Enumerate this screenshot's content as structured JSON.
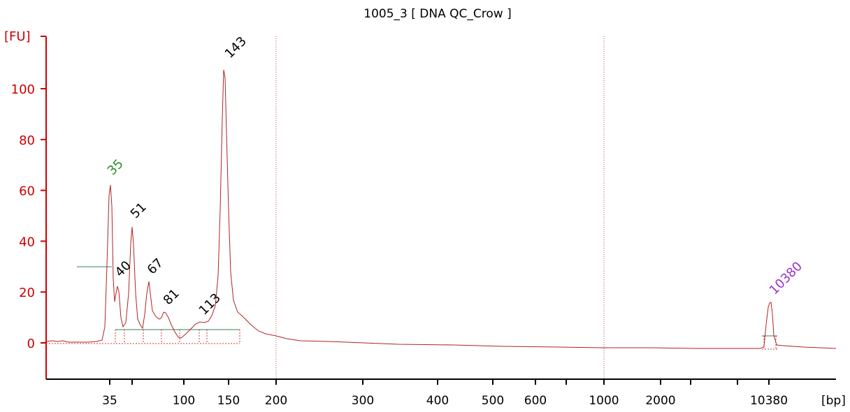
{
  "chart_data": {
    "type": "line",
    "title": "1005_3  [ DNA QC_Crow ]",
    "ylabel": "[FU]",
    "xlabel": "[bp]",
    "ylim": [
      -14,
      118
    ],
    "y_ticks": [
      0,
      20,
      40,
      60,
      80,
      100
    ],
    "x_tick_labels": [
      "35",
      "100",
      "150",
      "200",
      "300",
      "400",
      "500",
      "600",
      "1000",
      "2000",
      "10380"
    ],
    "peak_labels": [
      {
        "text": "35",
        "color": "#2a8a2a",
        "y": 63
      },
      {
        "text": "40",
        "color": "#000000",
        "y": 23
      },
      {
        "text": "51",
        "color": "#000000",
        "y": 46
      },
      {
        "text": "67",
        "color": "#000000",
        "y": 24
      },
      {
        "text": "81",
        "color": "#000000",
        "y": 12
      },
      {
        "text": "113",
        "color": "#000000",
        "y": 8
      },
      {
        "text": "143",
        "color": "#000000",
        "y": 109
      },
      {
        "text": "10380",
        "color": "#9933cc",
        "y": 16
      }
    ],
    "colors": {
      "trace": "#b22222",
      "axis": "#cc0000",
      "baseline": "#5f9a7a",
      "gridline": "#b05050"
    }
  }
}
